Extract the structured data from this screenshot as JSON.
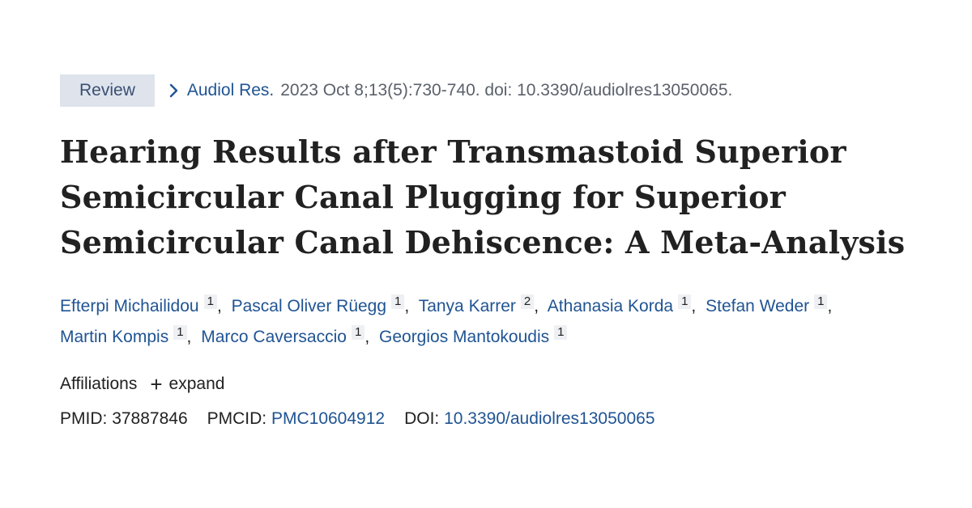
{
  "badge": "Review",
  "citation": {
    "journal": "Audiol Res.",
    "details": "2023 Oct 8;13(5):730-740. doi: 10.3390/audiolres13050065."
  },
  "title": "Hearing Results after Transmastoid Superior Semicircular Canal Plugging for Superior Semicircular Canal Dehiscence: A Meta-Analysis",
  "authors": [
    {
      "name": "Efterpi Michailidou",
      "aff": "1"
    },
    {
      "name": "Pascal Oliver Rüegg",
      "aff": "1"
    },
    {
      "name": "Tanya Karrer",
      "aff": "2"
    },
    {
      "name": "Athanasia Korda",
      "aff": "1"
    },
    {
      "name": "Stefan Weder",
      "aff": "1"
    },
    {
      "name": "Martin Kompis",
      "aff": "1"
    },
    {
      "name": "Marco Caversaccio",
      "aff": "1"
    },
    {
      "name": "Georgios Mantokoudis",
      "aff": "1"
    }
  ],
  "affiliations": {
    "label": "Affiliations",
    "expand_label": "expand",
    "expand_icon": "plus-icon"
  },
  "ids": {
    "pmid_label": "PMID:",
    "pmid": "37887846",
    "pmcid_label": "PMCID:",
    "pmcid": "PMC10604912",
    "doi_label": "DOI:",
    "doi": "10.3390/audiolres13050065"
  },
  "colors": {
    "link": "#205493",
    "badge_bg": "#dfe4ec",
    "text": "#212121",
    "muted": "#5b616b"
  }
}
